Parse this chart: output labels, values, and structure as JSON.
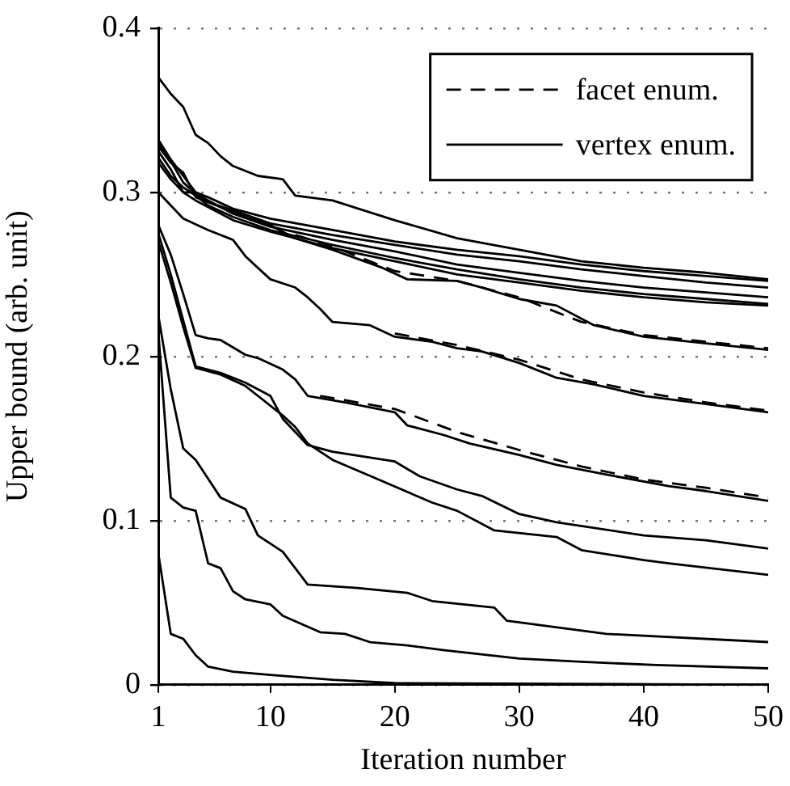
{
  "chart_data": {
    "type": "line",
    "xlabel": "Iteration number",
    "ylabel": "Upper bound (arb. unit)",
    "xlim": [
      1,
      50
    ],
    "xticks": [
      1,
      10,
      20,
      30,
      40,
      50
    ],
    "ylim": [
      0,
      0.4
    ],
    "yticks": [
      0,
      0.1,
      0.2,
      0.3,
      0.4
    ],
    "grid": "y",
    "legend": "top right",
    "marker": "none",
    "series": [
      {
        "name": "facet enum.",
        "color": "#000000",
        "line_style": "dashed",
        "x": [
          12,
          15,
          20,
          25,
          30,
          35,
          40,
          45,
          50
        ],
        "values": [
          0.274,
          0.267,
          0.252,
          0.246,
          0.236,
          0.221,
          0.213,
          0.209,
          0.205
        ]
      },
      {
        "name": "vertex enum.",
        "color": "#000000",
        "line_style": "solid",
        "x": [
          1,
          2,
          3,
          4,
          5,
          6,
          7,
          9,
          11,
          12,
          15,
          20,
          25,
          30,
          35,
          40,
          45,
          50
        ],
        "values": [
          0.37,
          0.36,
          0.352,
          0.335,
          0.33,
          0.322,
          0.316,
          0.31,
          0.308,
          0.298,
          0.295,
          0.283,
          0.272,
          0.265,
          0.258,
          0.254,
          0.251,
          0.247
        ]
      },
      {
        "color": "#000000",
        "line_style": "dashed",
        "x": [
          20,
          25,
          30,
          35,
          40,
          45,
          50
        ],
        "values": [
          0.214,
          0.207,
          0.198,
          0.186,
          0.178,
          0.172,
          0.167
        ]
      },
      {
        "color": "#000000",
        "line_style": "dashed",
        "x": [
          14,
          20,
          25,
          30,
          35,
          40,
          45,
          50
        ],
        "values": [
          0.176,
          0.168,
          0.154,
          0.143,
          0.133,
          0.125,
          0.12,
          0.114
        ]
      },
      {
        "color": "#000000",
        "line_style": "solid",
        "x": [
          1,
          2,
          3,
          4,
          5,
          7,
          10,
          15,
          20,
          25,
          30,
          35,
          40,
          45,
          50
        ],
        "values": [
          0.332,
          0.32,
          0.31,
          0.3,
          0.297,
          0.29,
          0.284,
          0.277,
          0.27,
          0.265,
          0.261,
          0.256,
          0.252,
          0.249,
          0.246
        ]
      },
      {
        "color": "#000000",
        "line_style": "solid",
        "x": [
          1,
          2,
          3,
          4,
          5,
          7,
          10,
          15,
          20,
          25,
          30,
          35,
          40,
          45,
          50
        ],
        "values": [
          0.328,
          0.318,
          0.312,
          0.297,
          0.294,
          0.289,
          0.281,
          0.274,
          0.268,
          0.262,
          0.258,
          0.253,
          0.249,
          0.245,
          0.242
        ]
      },
      {
        "color": "#000000",
        "line_style": "solid",
        "x": [
          1,
          2,
          3,
          4,
          5,
          7,
          10,
          15,
          20,
          25,
          30,
          35,
          40,
          45,
          50
        ],
        "values": [
          0.325,
          0.314,
          0.3,
          0.3,
          0.295,
          0.287,
          0.279,
          0.271,
          0.264,
          0.256,
          0.251,
          0.246,
          0.242,
          0.239,
          0.236
        ]
      },
      {
        "color": "#000000",
        "line_style": "solid",
        "x": [
          1,
          2,
          3,
          4,
          5,
          7,
          10,
          15,
          20,
          25,
          30,
          35,
          40,
          45,
          50
        ],
        "values": [
          0.321,
          0.31,
          0.303,
          0.298,
          0.292,
          0.285,
          0.277,
          0.268,
          0.26,
          0.253,
          0.247,
          0.242,
          0.238,
          0.235,
          0.232
        ]
      },
      {
        "color": "#000000",
        "line_style": "solid",
        "x": [
          1,
          2,
          3,
          4,
          5,
          7,
          10,
          15,
          20,
          25,
          30,
          35,
          40,
          45,
          50
        ],
        "values": [
          0.318,
          0.308,
          0.3,
          0.295,
          0.291,
          0.283,
          0.276,
          0.266,
          0.258,
          0.25,
          0.245,
          0.24,
          0.236,
          0.233,
          0.231
        ]
      },
      {
        "color": "#000000",
        "line_style": "solid",
        "x": [
          1,
          2,
          3,
          4,
          5,
          7,
          10,
          12,
          15,
          19,
          21,
          25,
          27,
          30,
          33,
          36,
          40,
          45,
          50
        ],
        "values": [
          0.33,
          0.319,
          0.306,
          0.299,
          0.294,
          0.288,
          0.28,
          0.272,
          0.265,
          0.254,
          0.247,
          0.246,
          0.242,
          0.235,
          0.231,
          0.219,
          0.212,
          0.208,
          0.204
        ]
      },
      {
        "color": "#000000",
        "line_style": "solid",
        "x": [
          1,
          2,
          3,
          5,
          7,
          8,
          10,
          12,
          13,
          14,
          15,
          18,
          20,
          23,
          25,
          27,
          30,
          33,
          36,
          40,
          42,
          45,
          50
        ],
        "values": [
          0.3,
          0.292,
          0.284,
          0.277,
          0.271,
          0.261,
          0.247,
          0.242,
          0.236,
          0.229,
          0.221,
          0.219,
          0.212,
          0.209,
          0.205,
          0.203,
          0.196,
          0.187,
          0.183,
          0.176,
          0.174,
          0.171,
          0.166
        ]
      },
      {
        "color": "#000000",
        "line_style": "solid",
        "x": [
          1,
          2,
          3,
          4,
          5,
          6,
          8,
          9,
          11,
          12,
          13,
          16,
          20,
          21,
          24,
          26,
          30,
          33,
          37,
          42,
          45,
          50
        ],
        "values": [
          0.28,
          0.262,
          0.238,
          0.213,
          0.211,
          0.21,
          0.201,
          0.199,
          0.192,
          0.186,
          0.176,
          0.172,
          0.166,
          0.158,
          0.152,
          0.147,
          0.14,
          0.134,
          0.128,
          0.121,
          0.118,
          0.112
        ]
      },
      {
        "color": "#000000",
        "line_style": "solid",
        "x": [
          1,
          2,
          3,
          4,
          6,
          8,
          10,
          11,
          13,
          15,
          20,
          22,
          25,
          27,
          30,
          33,
          40,
          45,
          50
        ],
        "values": [
          0.275,
          0.25,
          0.222,
          0.194,
          0.19,
          0.184,
          0.176,
          0.162,
          0.146,
          0.142,
          0.136,
          0.127,
          0.119,
          0.115,
          0.104,
          0.099,
          0.091,
          0.088,
          0.083
        ]
      },
      {
        "color": "#000000",
        "line_style": "solid",
        "x": [
          1,
          2,
          3,
          4,
          6,
          8,
          9,
          11,
          12,
          13,
          15,
          19,
          23,
          25,
          28,
          33,
          35,
          40,
          42,
          50
        ],
        "values": [
          0.27,
          0.245,
          0.218,
          0.193,
          0.189,
          0.182,
          0.176,
          0.164,
          0.157,
          0.147,
          0.137,
          0.124,
          0.111,
          0.106,
          0.094,
          0.09,
          0.082,
          0.076,
          0.074,
          0.067
        ]
      },
      {
        "color": "#000000",
        "line_style": "solid",
        "x": [
          1,
          2,
          3,
          4,
          6,
          8,
          9,
          11,
          13,
          17,
          21,
          23,
          28,
          29,
          37,
          50
        ],
        "values": [
          0.225,
          0.18,
          0.144,
          0.137,
          0.114,
          0.107,
          0.091,
          0.081,
          0.061,
          0.059,
          0.056,
          0.051,
          0.047,
          0.039,
          0.031,
          0.026
        ]
      },
      {
        "color": "#000000",
        "line_style": "solid",
        "x": [
          1,
          2,
          3,
          4,
          5,
          6,
          7,
          8,
          10,
          11,
          14,
          16,
          18,
          21,
          24,
          30,
          35,
          41,
          50
        ],
        "values": [
          0.215,
          0.114,
          0.108,
          0.106,
          0.074,
          0.071,
          0.057,
          0.052,
          0.049,
          0.042,
          0.032,
          0.031,
          0.026,
          0.024,
          0.021,
          0.016,
          0.014,
          0.012,
          0.01
        ]
      },
      {
        "color": "#000000",
        "line_style": "solid",
        "x": [
          1,
          2,
          3,
          4,
          5,
          7,
          10,
          15,
          20,
          50
        ],
        "values": [
          0.08,
          0.031,
          0.028,
          0.018,
          0.011,
          0.008,
          0.006,
          0.003,
          0.001,
          0
        ]
      }
    ]
  }
}
